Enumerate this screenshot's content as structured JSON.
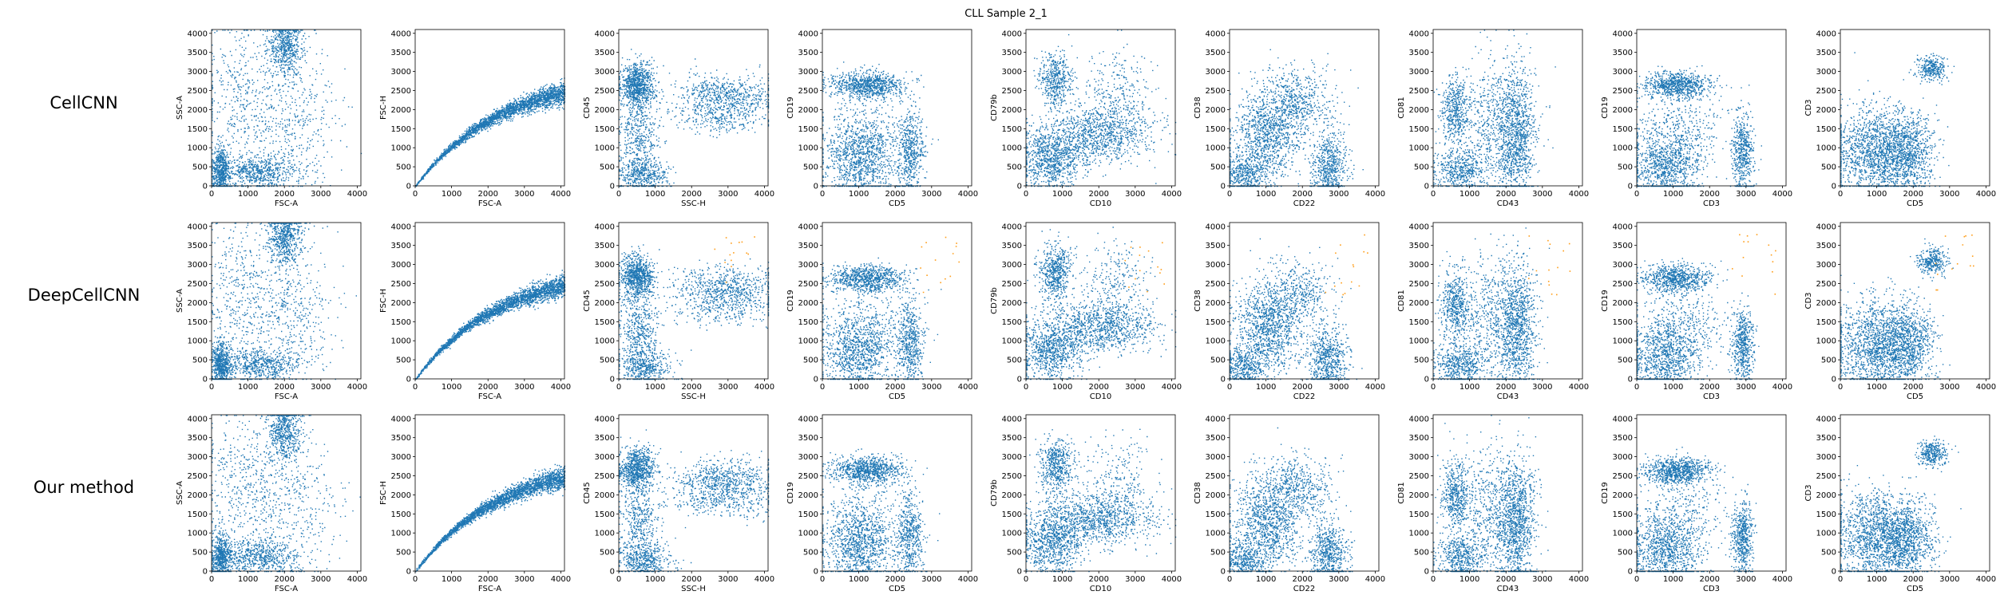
{
  "figure": {
    "title": "CLL Sample 2_1",
    "colors": {
      "cells": "#1f77b4",
      "highlight": "#ff9f1c"
    },
    "method_rows": [
      "CellCNN",
      "DeepCellCNN",
      "Our method"
    ],
    "highlight_rows": [
      "DeepCellCNN"
    ]
  },
  "chart_data": {
    "type": "scatter",
    "grid": false,
    "rows": [
      "CellCNN",
      "DeepCellCNN",
      "Our method"
    ],
    "axis_range": [
      0,
      4100
    ],
    "ticks": [
      0,
      500,
      1000,
      1500,
      2000,
      2500,
      3000,
      3500,
      4000
    ],
    "xticks": [
      0,
      1000,
      2000,
      3000,
      4000
    ],
    "panels": [
      {
        "xlabel": "FSC-A",
        "ylabel": "SSC-A",
        "clusters": [
          {
            "cx": 250,
            "cy": 400,
            "sx": 130,
            "sy": 300,
            "w": 0.22
          },
          {
            "cx": 1300,
            "cy": 380,
            "sx": 600,
            "sy": 220,
            "w": 0.25
          },
          {
            "cx": 2000,
            "cy": 3700,
            "sx": 230,
            "sy": 380,
            "w": 0.22
          },
          {
            "cx": 2100,
            "cy": 1800,
            "sx": 650,
            "sy": 900,
            "w": 0.18
          },
          {
            "cx": 700,
            "cy": 2300,
            "sx": 500,
            "sy": 1000,
            "w": 0.13
          }
        ]
      },
      {
        "xlabel": "FSC-A",
        "ylabel": "FSC-H",
        "curve": {
          "a": 2950,
          "k": 2300,
          "sd": 140,
          "xmax": 4100
        },
        "clusters": []
      },
      {
        "xlabel": "SSC-H",
        "ylabel": "CD45",
        "clusters": [
          {
            "cx": 500,
            "cy": 2700,
            "sx": 230,
            "sy": 280,
            "w": 0.3
          },
          {
            "cx": 2900,
            "cy": 2400,
            "sx": 700,
            "sy": 280,
            "w": 0.25
          },
          {
            "cx": 2800,
            "cy": 1800,
            "sx": 700,
            "sy": 200,
            "w": 0.1
          },
          {
            "cx": 550,
            "cy": 1200,
            "sx": 280,
            "sy": 700,
            "w": 0.2
          },
          {
            "cx": 700,
            "cy": 300,
            "sx": 350,
            "sy": 200,
            "w": 0.15
          }
        ]
      },
      {
        "xlabel": "CD5",
        "ylabel": "CD19",
        "clusters": [
          {
            "cx": 1200,
            "cy": 2650,
            "sx": 500,
            "sy": 180,
            "w": 0.32
          },
          {
            "cx": 1000,
            "cy": 700,
            "sx": 500,
            "sy": 500,
            "w": 0.4
          },
          {
            "cx": 2400,
            "cy": 900,
            "sx": 180,
            "sy": 550,
            "w": 0.2
          },
          {
            "cx": 1300,
            "cy": 1600,
            "sx": 700,
            "sy": 500,
            "w": 0.08
          }
        ]
      },
      {
        "xlabel": "CD10",
        "ylabel": "CD79b",
        "clusters": [
          {
            "cx": 800,
            "cy": 2800,
            "sx": 230,
            "sy": 350,
            "w": 0.2
          },
          {
            "cx": 1900,
            "cy": 1350,
            "sx": 800,
            "sy": 350,
            "w": 0.4
          },
          {
            "cx": 700,
            "cy": 700,
            "sx": 400,
            "sy": 400,
            "w": 0.3
          },
          {
            "cx": 2500,
            "cy": 2400,
            "sx": 500,
            "sy": 600,
            "w": 0.1
          }
        ]
      },
      {
        "xlabel": "CD22",
        "ylabel": "CD38",
        "clusters": [
          {
            "cx": 1000,
            "cy": 1300,
            "sx": 450,
            "sy": 600,
            "w": 0.4
          },
          {
            "cx": 2700,
            "cy": 500,
            "sx": 250,
            "sy": 450,
            "w": 0.25
          },
          {
            "cx": 1800,
            "cy": 2200,
            "sx": 500,
            "sy": 450,
            "w": 0.2
          },
          {
            "cx": 400,
            "cy": 300,
            "sx": 300,
            "sy": 250,
            "w": 0.15
          }
        ]
      },
      {
        "xlabel": "CD43",
        "ylabel": "CD81",
        "clusters": [
          {
            "cx": 600,
            "cy": 2000,
            "sx": 200,
            "sy": 450,
            "w": 0.18
          },
          {
            "cx": 2300,
            "cy": 1300,
            "sx": 250,
            "sy": 850,
            "w": 0.35
          },
          {
            "cx": 1700,
            "cy": 1500,
            "sx": 500,
            "sy": 900,
            "w": 0.27
          },
          {
            "cx": 700,
            "cy": 400,
            "sx": 350,
            "sy": 300,
            "w": 0.2
          }
        ]
      },
      {
        "xlabel": "CD3",
        "ylabel": "CD19",
        "clusters": [
          {
            "cx": 1100,
            "cy": 2650,
            "sx": 450,
            "sy": 180,
            "w": 0.3
          },
          {
            "cx": 800,
            "cy": 600,
            "sx": 500,
            "sy": 500,
            "w": 0.4
          },
          {
            "cx": 2900,
            "cy": 900,
            "sx": 150,
            "sy": 500,
            "w": 0.2
          },
          {
            "cx": 1300,
            "cy": 1600,
            "sx": 600,
            "sy": 500,
            "w": 0.1
          }
        ]
      },
      {
        "xlabel": "CD5",
        "ylabel": "CD3",
        "clusters": [
          {
            "cx": 2500,
            "cy": 3100,
            "sx": 200,
            "sy": 170,
            "w": 0.12
          },
          {
            "cx": 1000,
            "cy": 900,
            "sx": 600,
            "sy": 600,
            "w": 0.55
          },
          {
            "cx": 1800,
            "cy": 900,
            "sx": 400,
            "sy": 500,
            "w": 0.33
          }
        ]
      }
    ]
  }
}
